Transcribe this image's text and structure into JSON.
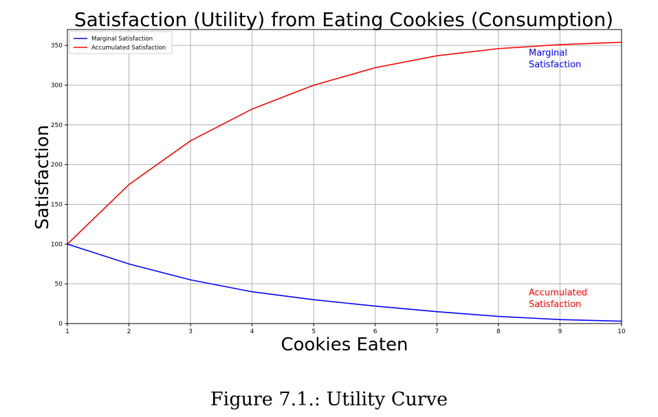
{
  "chart_data": {
    "type": "line",
    "title": "Satisfaction (Utility) from Eating Cookies (Consumption)",
    "xlabel": "Cookies Eaten",
    "ylabel": "Satisfaction",
    "x": [
      1,
      2,
      3,
      4,
      5,
      6,
      7,
      8,
      9,
      10
    ],
    "xlim": [
      1,
      10
    ],
    "ylim": [
      0,
      370
    ],
    "xticks": [
      1,
      2,
      3,
      4,
      5,
      6,
      7,
      8,
      9,
      10
    ],
    "yticks": [
      0,
      50,
      100,
      150,
      200,
      250,
      300,
      350
    ],
    "grid": true,
    "legend_position": "top-left",
    "series": [
      {
        "name": "Marginal Satisfaction",
        "color": "#0000ff",
        "values": [
          100,
          75,
          55,
          40,
          30,
          22,
          15,
          9,
          5,
          3
        ],
        "annotation": [
          "Marginal",
          "Satisfaction"
        ]
      },
      {
        "name": "Accumulated Satisfaction",
        "color": "#ff0000",
        "values": [
          100,
          175,
          230,
          270,
          300,
          322,
          337,
          346,
          351,
          354
        ],
        "annotation": [
          "Accumulated",
          "Satisfaction"
        ]
      }
    ]
  },
  "caption": "Figure 7.1.: Utility Curve"
}
